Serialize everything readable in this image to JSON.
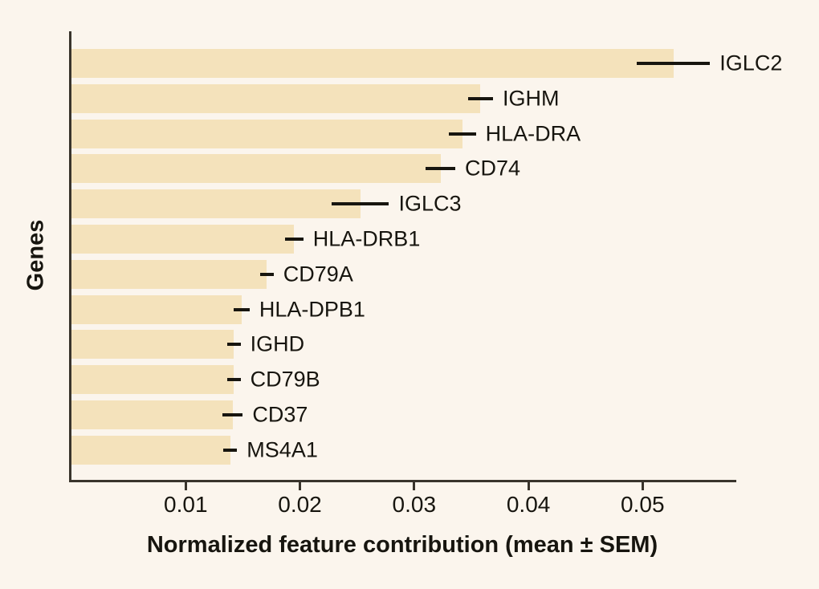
{
  "figure": {
    "background_color": "#fbf5ed",
    "bar_color": "#f4e2bb",
    "axis_color": "#39342c",
    "text_color": "#17150f"
  },
  "chart_data": {
    "type": "bar",
    "orientation": "horizontal",
    "title": "",
    "xlabel": "Normalized feature contribution (mean ± SEM)",
    "ylabel": "Genes",
    "xlim": [
      0,
      0.0582
    ],
    "xticks": [
      0.01,
      0.02,
      0.03,
      0.04,
      0.05
    ],
    "xtick_labels": [
      "0.01",
      "0.02",
      "0.03",
      "0.04",
      "0.05"
    ],
    "grid": false,
    "legend": false,
    "error_bars": "horizontal SEM lines, no caps, centered on bar end",
    "categories": [
      "IGLC2",
      "IGHM",
      "HLA-DRA",
      "CD74",
      "IGLC3",
      "HLA-DRB1",
      "CD79A",
      "HLA-DPB1",
      "IGHD",
      "CD79B",
      "CD37",
      "MS4A1"
    ],
    "values": [
      0.0527,
      0.0358,
      0.0342,
      0.0323,
      0.0253,
      0.0195,
      0.0171,
      0.0149,
      0.0142,
      0.0142,
      0.0141,
      0.0139
    ],
    "sem": [
      0.0032,
      0.0011,
      0.0012,
      0.0013,
      0.0025,
      0.0008,
      0.0006,
      0.0007,
      0.0006,
      0.0006,
      0.0009,
      0.0006
    ]
  }
}
